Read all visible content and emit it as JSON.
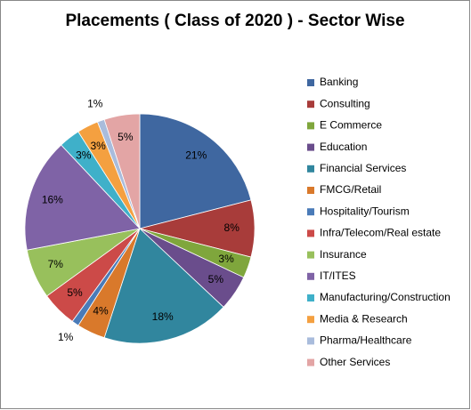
{
  "chart_data": {
    "type": "pie",
    "title": "Placements ( Class of 2020 ) - Sector Wise",
    "categories": [
      "Banking",
      "Consulting",
      "E Commerce",
      "Education",
      "Financial Services",
      "FMCG/Retail",
      "Hospitality/Tourism",
      "Infra/Telecom/Real estate",
      "Insurance",
      "IT/ITES",
      "Manufacturing/Construction",
      "Media & Research",
      "Pharma/Healthcare",
      "Other Services"
    ],
    "values": [
      21,
      8,
      3,
      5,
      18,
      4,
      1,
      5,
      7,
      16,
      3,
      3,
      1,
      5
    ],
    "value_labels": [
      "21%",
      "8%",
      "3%",
      "5%",
      "18%",
      "4%",
      "1%",
      "5%",
      "7%",
      "16%",
      "3%",
      "3%",
      "1%",
      "5%"
    ],
    "colors": [
      "#3f67a0",
      "#a83c3a",
      "#7fa63c",
      "#6a4d8c",
      "#31869e",
      "#d9792b",
      "#4a7bb8",
      "#cc4a48",
      "#98c05c",
      "#7f63a6",
      "#3fb0c9",
      "#f4a040",
      "#a9bcdc",
      "#e3a5a5"
    ],
    "legend": "right"
  }
}
